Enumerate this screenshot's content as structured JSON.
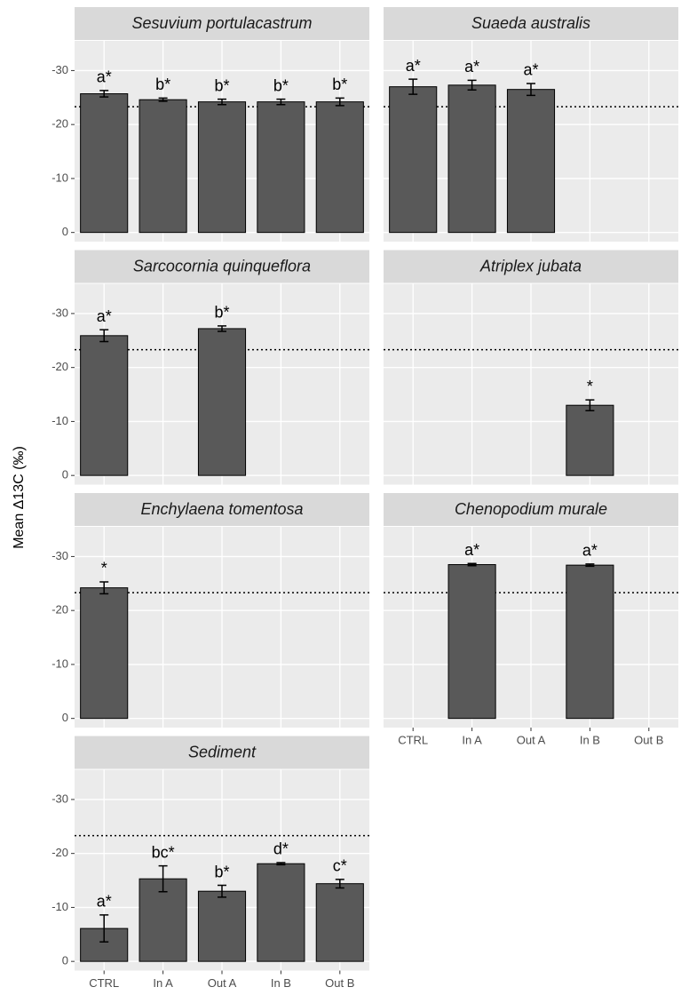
{
  "chart_data": {
    "type": "bar",
    "y_label": "Mean Δ13C (‰)",
    "categories": [
      "CTRL",
      "In A",
      "Out A",
      "In B",
      "Out B"
    ],
    "ylim": [
      1.7,
      -35.5
    ],
    "yticks": [
      -30,
      -20,
      -10,
      0
    ],
    "hline": -23.3,
    "color": "#595959",
    "grid": true,
    "panels": [
      {
        "title": "Sesuvium portulacastrum",
        "values": [
          -25.7,
          -24.6,
          -24.2,
          -24.2,
          -24.2
        ],
        "errors": [
          0.6,
          0.3,
          0.5,
          0.5,
          0.7
        ],
        "annotations": [
          "a*",
          "b*",
          "b*",
          "b*",
          "b*"
        ]
      },
      {
        "title": "Suaeda australis",
        "values": [
          -27.0,
          -27.3,
          -26.5,
          null,
          null
        ],
        "errors": [
          1.4,
          0.9,
          1.1,
          null,
          null
        ],
        "annotations": [
          "a*",
          "a*",
          "a*",
          null,
          null
        ]
      },
      {
        "title": "Sarcocornia quinqueflora",
        "values": [
          -25.9,
          null,
          -27.2,
          null,
          null
        ],
        "errors": [
          1.1,
          null,
          0.5,
          null,
          null
        ],
        "annotations": [
          "a*",
          null,
          "b*",
          null,
          null
        ]
      },
      {
        "title": "Atriplex jubata",
        "values": [
          null,
          null,
          null,
          -13.0,
          null
        ],
        "errors": [
          null,
          null,
          null,
          1.0,
          null
        ],
        "annotations": [
          null,
          null,
          null,
          "*",
          null
        ]
      },
      {
        "title": "Enchylaena tomentosa",
        "values": [
          -24.2,
          null,
          null,
          null,
          null
        ],
        "errors": [
          1.1,
          null,
          null,
          null,
          null
        ],
        "annotations": [
          "*",
          null,
          null,
          null,
          null
        ]
      },
      {
        "title": "Chenopodium murale",
        "values": [
          null,
          -28.5,
          null,
          -28.4,
          null
        ],
        "errors": [
          null,
          0.2,
          null,
          0.2,
          null
        ],
        "annotations": [
          null,
          "a*",
          null,
          "a*",
          null
        ]
      },
      {
        "title": "Sediment",
        "values": [
          -6.1,
          -15.3,
          -13.0,
          -18.1,
          -14.4
        ],
        "errors": [
          2.5,
          2.4,
          1.1,
          0.2,
          0.8
        ],
        "annotations": [
          "a*",
          "bc*",
          "b*",
          "d*",
          "c*"
        ]
      }
    ]
  }
}
